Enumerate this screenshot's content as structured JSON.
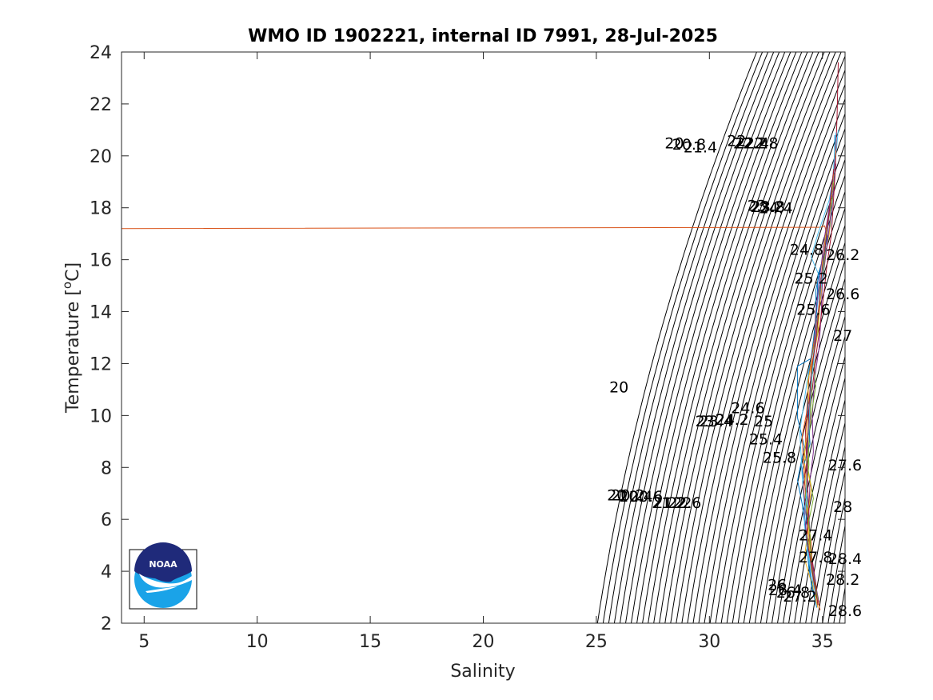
{
  "chart_data": {
    "type": "line",
    "title": "WMO ID 1902221, internal ID 7991, 28-Jul-2025",
    "xlabel": "Salinity",
    "ylabel_main": "Temperature [",
    "ylabel_sup": "o",
    "ylabel_end": "C]",
    "xlim": [
      4,
      36
    ],
    "ylim": [
      2,
      24
    ],
    "xticks": [
      5,
      10,
      15,
      20,
      25,
      30,
      35
    ],
    "yticks": [
      2,
      4,
      6,
      8,
      10,
      12,
      14,
      16,
      18,
      20,
      22,
      24
    ],
    "grid": false,
    "legend": "none",
    "density_contours": {
      "sigma_min": 20.0,
      "sigma_max": 28.6,
      "sigma_step": 0.2,
      "color": "#000000"
    },
    "contour_labels": [
      {
        "text": "20",
        "s": 26.0,
        "t": 11.1
      },
      {
        "text": "20",
        "s": 25.9,
        "t": 6.95
      },
      {
        "text": "20",
        "s": 28.45,
        "t": 20.5
      },
      {
        "text": "20.2",
        "s": 26.4,
        "t": 6.95
      },
      {
        "text": "20.4",
        "s": 26.75,
        "t": 6.9
      },
      {
        "text": "20.6",
        "s": 27.2,
        "t": 6.9
      },
      {
        "text": "20.8",
        "s": 29.1,
        "t": 20.45
      },
      {
        "text": "21",
        "s": 27.95,
        "t": 6.65
      },
      {
        "text": "21.2",
        "s": 28.2,
        "t": 6.65
      },
      {
        "text": "21.4",
        "s": 29.6,
        "t": 20.35
      },
      {
        "text": "22",
        "s": 28.8,
        "t": 6.65
      },
      {
        "text": "22",
        "s": 31.2,
        "t": 20.6
      },
      {
        "text": "22.2",
        "s": 31.8,
        "t": 20.5
      },
      {
        "text": "22.4",
        "s": 31.9,
        "t": 20.5
      },
      {
        "text": "22.6",
        "s": 28.9,
        "t": 6.65
      },
      {
        "text": "22.8",
        "s": 32.3,
        "t": 20.5
      },
      {
        "text": "23",
        "s": 29.8,
        "t": 9.8
      },
      {
        "text": "23",
        "s": 32.1,
        "t": 18.1
      },
      {
        "text": "23.2",
        "s": 32.55,
        "t": 18.05
      },
      {
        "text": "23.4",
        "s": 30.3,
        "t": 9.8
      },
      {
        "text": "23.8",
        "s": 32.6,
        "t": 18.05
      },
      {
        "text": "24",
        "s": 30.7,
        "t": 9.85
      },
      {
        "text": "24.2",
        "s": 31.0,
        "t": 9.85
      },
      {
        "text": "24.4",
        "s": 32.95,
        "t": 18.0
      },
      {
        "text": "24.6",
        "s": 31.7,
        "t": 10.3
      },
      {
        "text": "24.8",
        "s": 34.3,
        "t": 16.4
      },
      {
        "text": "25",
        "s": 32.4,
        "t": 9.8
      },
      {
        "text": "25.2",
        "s": 34.5,
        "t": 15.3
      },
      {
        "text": "25.4",
        "s": 32.5,
        "t": 9.1
      },
      {
        "text": "25.6",
        "s": 34.6,
        "t": 14.1
      },
      {
        "text": "25.8",
        "s": 33.1,
        "t": 8.4
      },
      {
        "text": "26",
        "s": 33.0,
        "t": 3.5
      },
      {
        "text": "26.2",
        "s": 35.9,
        "t": 16.2
      },
      {
        "text": "26.4",
        "s": 33.35,
        "t": 3.3
      },
      {
        "text": "26.6",
        "s": 35.9,
        "t": 14.7
      },
      {
        "text": "26.8",
        "s": 33.7,
        "t": 3.2
      },
      {
        "text": "27",
        "s": 35.9,
        "t": 13.1
      },
      {
        "text": "27.2",
        "s": 34.0,
        "t": 3.05
      },
      {
        "text": "27.4",
        "s": 34.7,
        "t": 5.4
      },
      {
        "text": "27.6",
        "s": 36.0,
        "t": 8.1
      },
      {
        "text": "27.8",
        "s": 34.7,
        "t": 4.55
      },
      {
        "text": "28",
        "s": 35.9,
        "t": 6.5
      },
      {
        "text": "28.2",
        "s": 35.9,
        "t": 3.7
      },
      {
        "text": "28.4",
        "s": 36.0,
        "t": 4.5
      },
      {
        "text": "28.6",
        "s": 36.0,
        "t": 2.5
      }
    ],
    "series": [
      {
        "color": "#d95319",
        "points": [
          [
            4.0,
            17.2
          ],
          [
            34.9,
            17.25
          ],
          [
            35.1,
            17.3
          ],
          [
            35.25,
            16.8
          ]
        ]
      },
      {
        "color": "#0072bd",
        "points": [
          [
            35.55,
            20.8
          ],
          [
            35.5,
            18.9
          ],
          [
            35.35,
            17.3
          ],
          [
            35.0,
            16.0
          ],
          [
            34.7,
            14.8
          ],
          [
            34.75,
            13.2
          ],
          [
            34.5,
            12.2
          ],
          [
            33.9,
            11.9
          ],
          [
            33.9,
            9.9
          ],
          [
            34.2,
            8.8
          ],
          [
            33.9,
            7.5
          ],
          [
            34.1,
            6.6
          ],
          [
            34.35,
            5.0
          ],
          [
            34.5,
            3.5
          ],
          [
            34.75,
            2.6
          ]
        ]
      },
      {
        "color": "#edb120",
        "points": [
          [
            35.45,
            18.5
          ],
          [
            35.3,
            17.0
          ],
          [
            35.1,
            16.0
          ],
          [
            34.9,
            14.4
          ],
          [
            34.8,
            13.2
          ],
          [
            34.55,
            12.0
          ],
          [
            34.5,
            10.8
          ],
          [
            34.3,
            9.6
          ],
          [
            34.2,
            8.3
          ],
          [
            34.3,
            7.0
          ],
          [
            34.4,
            5.9
          ],
          [
            34.2,
            4.5
          ],
          [
            34.5,
            3.6
          ],
          [
            34.8,
            2.6
          ]
        ]
      },
      {
        "color": "#7e2f8e",
        "points": [
          [
            35.6,
            19.7
          ],
          [
            35.4,
            18.0
          ],
          [
            35.2,
            16.5
          ],
          [
            35.0,
            15.2
          ],
          [
            34.95,
            14.0
          ],
          [
            34.85,
            12.6
          ],
          [
            34.65,
            11.4
          ],
          [
            34.55,
            10.0
          ],
          [
            34.6,
            8.6
          ],
          [
            34.45,
            7.5
          ],
          [
            34.4,
            6.3
          ],
          [
            34.45,
            5.0
          ],
          [
            34.6,
            3.9
          ],
          [
            34.85,
            2.8
          ]
        ]
      },
      {
        "color": "#77ac30",
        "points": [
          [
            35.5,
            19.0
          ],
          [
            35.25,
            17.6
          ],
          [
            35.05,
            15.6
          ],
          [
            34.7,
            14.0
          ],
          [
            34.6,
            12.4
          ],
          [
            34.7,
            11.1
          ],
          [
            34.45,
            9.7
          ],
          [
            34.35,
            8.0
          ],
          [
            34.6,
            6.8
          ],
          [
            34.3,
            5.5
          ],
          [
            34.55,
            4.2
          ],
          [
            34.7,
            3.0
          ]
        ]
      },
      {
        "color": "#4dbeee",
        "points": [
          [
            35.7,
            21.0
          ],
          [
            35.55,
            19.6
          ],
          [
            35.3,
            18.3
          ],
          [
            34.8,
            17.0
          ],
          [
            34.5,
            16.1
          ],
          [
            34.9,
            15.3
          ],
          [
            34.7,
            13.6
          ],
          [
            34.7,
            12.8
          ],
          [
            34.4,
            11.8
          ],
          [
            34.2,
            10.6
          ],
          [
            34.0,
            9.4
          ],
          [
            34.1,
            7.7
          ],
          [
            34.2,
            6.3
          ],
          [
            34.35,
            4.8
          ],
          [
            34.65,
            3.4
          ]
        ]
      },
      {
        "color": "#a2142f",
        "points": [
          [
            35.7,
            23.6
          ],
          [
            35.65,
            21.6
          ],
          [
            35.55,
            19.2
          ],
          [
            35.4,
            17.0
          ],
          [
            35.2,
            15.8
          ],
          [
            35.05,
            14.6
          ],
          [
            34.9,
            13.5
          ],
          [
            34.7,
            12.2
          ],
          [
            34.55,
            11.0
          ],
          [
            34.35,
            10.4
          ],
          [
            34.25,
            9.4
          ],
          [
            34.3,
            8.2
          ],
          [
            34.15,
            7.3
          ],
          [
            34.3,
            6.0
          ],
          [
            34.5,
            4.7
          ],
          [
            34.75,
            3.3
          ]
        ]
      },
      {
        "color": "#0072bd",
        "points": [
          [
            35.35,
            18.1
          ],
          [
            35.1,
            16.2
          ],
          [
            34.8,
            15.4
          ],
          [
            34.75,
            14.1
          ],
          [
            34.6,
            12.9
          ],
          [
            34.4,
            11.6
          ],
          [
            34.35,
            10.2
          ],
          [
            34.45,
            8.9
          ],
          [
            34.1,
            7.9
          ],
          [
            34.35,
            6.7
          ],
          [
            34.25,
            5.6
          ],
          [
            34.4,
            4.1
          ],
          [
            34.65,
            3.0
          ]
        ]
      },
      {
        "color": "#d95319",
        "points": [
          [
            35.6,
            20.2
          ],
          [
            35.4,
            18.6
          ],
          [
            35.15,
            17.0
          ],
          [
            35.0,
            15.5
          ],
          [
            34.8,
            13.9
          ],
          [
            34.6,
            12.7
          ],
          [
            34.4,
            11.5
          ],
          [
            34.3,
            10.1
          ],
          [
            34.1,
            9.2
          ],
          [
            34.2,
            7.6
          ],
          [
            34.3,
            6.4
          ],
          [
            34.5,
            5.1
          ],
          [
            34.55,
            3.8
          ],
          [
            34.9,
            2.5
          ]
        ]
      },
      {
        "color": "#edb120",
        "points": [
          [
            35.5,
            19.3
          ],
          [
            35.3,
            17.7
          ],
          [
            35.0,
            16.2
          ],
          [
            34.95,
            14.8
          ],
          [
            34.8,
            13.6
          ],
          [
            34.6,
            12.3
          ],
          [
            34.35,
            11.3
          ],
          [
            34.45,
            9.8
          ],
          [
            34.2,
            8.6
          ],
          [
            34.5,
            7.2
          ],
          [
            34.35,
            6.0
          ],
          [
            34.45,
            4.6
          ],
          [
            34.6,
            3.3
          ]
        ]
      },
      {
        "color": "#7e2f8e",
        "points": [
          [
            35.55,
            19.9
          ],
          [
            35.3,
            18.0
          ],
          [
            35.1,
            16.9
          ],
          [
            34.85,
            15.1
          ],
          [
            34.7,
            13.9
          ],
          [
            34.65,
            12.5
          ],
          [
            34.5,
            11.2
          ],
          [
            34.45,
            9.9
          ],
          [
            34.3,
            8.8
          ],
          [
            34.35,
            7.4
          ],
          [
            34.2,
            6.2
          ],
          [
            34.35,
            5.0
          ],
          [
            34.7,
            3.6
          ]
        ]
      },
      {
        "color": "#77ac30",
        "points": [
          [
            35.45,
            18.4
          ],
          [
            35.2,
            17.2
          ],
          [
            35.05,
            15.9
          ],
          [
            34.9,
            14.6
          ],
          [
            34.75,
            13.1
          ],
          [
            34.55,
            11.9
          ],
          [
            34.5,
            10.5
          ],
          [
            34.35,
            9.3
          ],
          [
            34.4,
            8.1
          ],
          [
            34.25,
            6.9
          ],
          [
            34.45,
            5.4
          ],
          [
            34.5,
            4.3
          ],
          [
            34.8,
            2.9
          ]
        ]
      },
      {
        "color": "#4dbeee",
        "points": [
          [
            35.6,
            20.9
          ],
          [
            35.45,
            19.0
          ],
          [
            35.25,
            17.4
          ],
          [
            35.1,
            16.4
          ],
          [
            34.95,
            15.0
          ],
          [
            34.75,
            13.4
          ],
          [
            34.6,
            12.0
          ],
          [
            34.45,
            10.8
          ],
          [
            34.4,
            9.5
          ],
          [
            34.3,
            8.3
          ],
          [
            34.3,
            7.1
          ],
          [
            34.2,
            5.8
          ],
          [
            34.4,
            4.4
          ],
          [
            34.7,
            3.1
          ]
        ]
      },
      {
        "color": "#a2142f",
        "points": [
          [
            35.5,
            19.5
          ],
          [
            35.35,
            18.2
          ],
          [
            35.15,
            16.7
          ],
          [
            34.95,
            15.4
          ],
          [
            34.85,
            14.2
          ],
          [
            34.7,
            12.8
          ],
          [
            34.5,
            11.7
          ],
          [
            34.4,
            10.3
          ],
          [
            34.35,
            9.0
          ],
          [
            34.3,
            7.8
          ],
          [
            34.4,
            6.5
          ],
          [
            34.3,
            5.3
          ],
          [
            34.55,
            4.0
          ],
          [
            34.8,
            2.7
          ]
        ]
      }
    ]
  },
  "logo": {
    "name": "NOAA",
    "text": "NOAA",
    "top_color": "#1f2a7a",
    "bottom_color": "#1aa3e8"
  }
}
